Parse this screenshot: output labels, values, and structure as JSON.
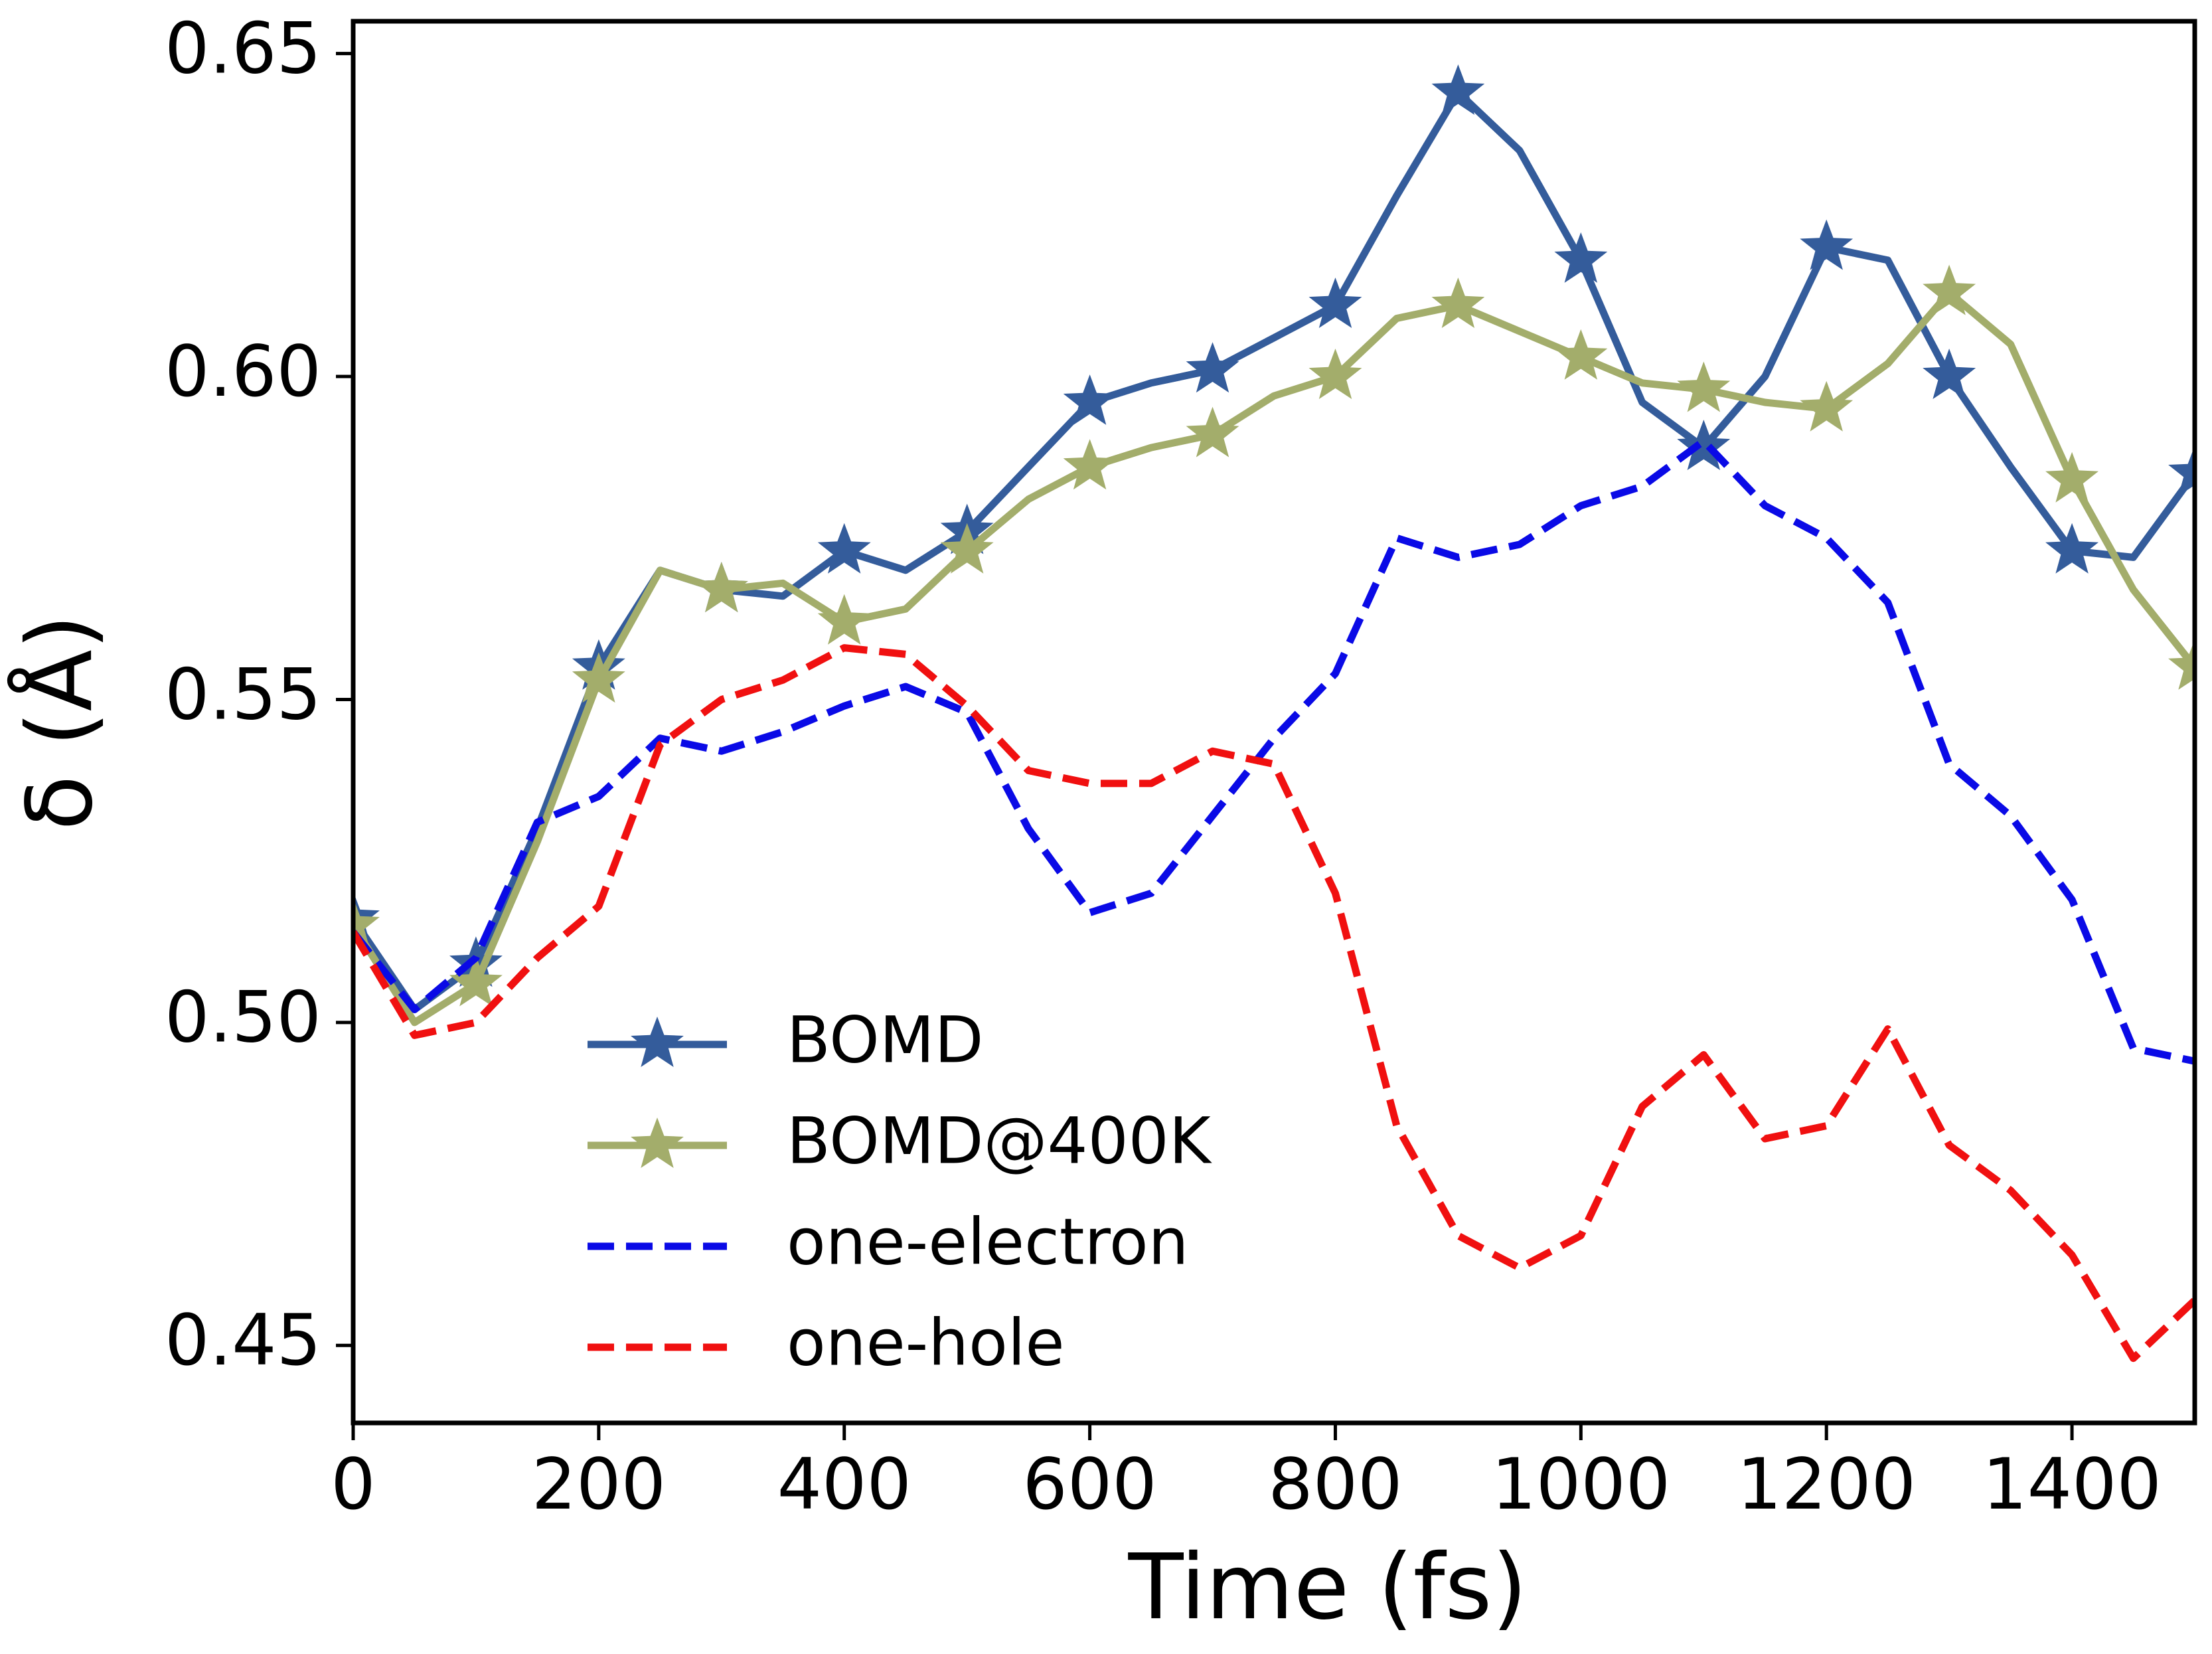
{
  "chart_data": {
    "type": "line",
    "xlabel": "Time (fs)",
    "ylabel": "δ (Å)",
    "xlim": [
      0,
      1500
    ],
    "xticks": [
      0,
      200,
      400,
      600,
      800,
      1000,
      1200,
      1400
    ],
    "ylim": [
      0.438,
      0.655
    ],
    "yticks": [
      {
        "value": 0.45,
        "label": "0.45"
      },
      {
        "value": 0.5,
        "label": "0.50"
      },
      {
        "value": 0.55,
        "label": "0.55"
      },
      {
        "value": 0.6,
        "label": "0.60"
      },
      {
        "value": 0.65,
        "label": "0.65"
      }
    ],
    "legend": "lower left",
    "x": [
      0,
      50,
      100,
      150,
      200,
      250,
      300,
      350,
      400,
      450,
      500,
      550,
      600,
      650,
      700,
      750,
      800,
      850,
      900,
      950,
      1000,
      1050,
      1100,
      1150,
      1200,
      1250,
      1300,
      1350,
      1400,
      1450,
      1500
    ],
    "series": [
      {
        "name": "BOMD",
        "color": "#345c9b",
        "style": "solid",
        "marker": "star",
        "values": [
          0.516,
          0.502,
          0.509,
          0.53,
          0.555,
          0.57,
          0.567,
          0.566,
          0.573,
          0.57,
          0.576,
          0.586,
          0.596,
          0.599,
          0.601,
          0.606,
          0.611,
          0.628,
          0.644,
          0.635,
          0.618,
          0.596,
          0.589,
          0.6,
          0.62,
          0.618,
          0.6,
          0.586,
          0.573,
          0.572,
          0.585
        ]
      },
      {
        "name": "BOMD@400K",
        "color": "#a3ad6b",
        "style": "solid",
        "marker": "star",
        "values": [
          0.515,
          0.5,
          0.506,
          0.528,
          0.553,
          0.57,
          0.567,
          0.568,
          0.562,
          0.564,
          0.573,
          0.581,
          0.586,
          0.589,
          0.591,
          0.597,
          0.6,
          0.609,
          0.611,
          0.607,
          0.603,
          0.599,
          0.598,
          0.596,
          0.595,
          0.602,
          0.613,
          0.605,
          0.584,
          0.567,
          0.555
        ]
      },
      {
        "name": "one-electron",
        "color": "#0a0ae6",
        "style": "dashed",
        "marker": null,
        "values": [
          0.514,
          0.502,
          0.51,
          0.531,
          0.535,
          0.544,
          0.542,
          0.545,
          0.549,
          0.552,
          0.548,
          0.53,
          0.517,
          0.52,
          0.532,
          0.544,
          0.554,
          0.575,
          0.572,
          0.574,
          0.58,
          0.583,
          0.59,
          0.58,
          0.575,
          0.565,
          0.54,
          0.532,
          0.519,
          0.496,
          0.494
        ]
      },
      {
        "name": "one-hole",
        "color": "#f01010",
        "style": "dashed",
        "marker": null,
        "values": [
          0.514,
          0.498,
          0.5,
          0.51,
          0.518,
          0.543,
          0.55,
          0.553,
          0.558,
          0.557,
          0.549,
          0.539,
          0.537,
          0.537,
          0.542,
          0.54,
          0.52,
          0.484,
          0.467,
          0.462,
          0.467,
          0.487,
          0.495,
          0.482,
          0.484,
          0.499,
          0.481,
          0.474,
          0.464,
          0.448,
          0.457
        ]
      }
    ]
  }
}
